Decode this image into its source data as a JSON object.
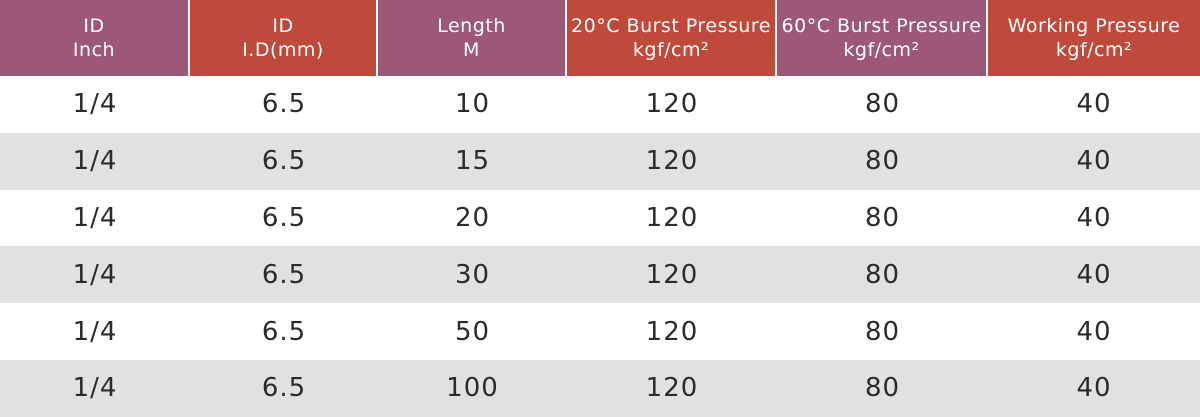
{
  "table": {
    "headers": [
      [
        "ID",
        "Inch"
      ],
      [
        "ID",
        "I.D(mm)"
      ],
      [
        "Length",
        "M"
      ],
      [
        "20°C Burst Pressure",
        "kgf/cm²"
      ],
      [
        "60°C Burst Pressure",
        "kgf/cm²"
      ],
      [
        "Working Pressure",
        "kgf/cm²"
      ]
    ],
    "rows": [
      [
        "1/4",
        6.5,
        10,
        120,
        80,
        40
      ],
      [
        "1/4",
        6.5,
        15,
        120,
        80,
        40
      ],
      [
        "1/4",
        6.5,
        20,
        120,
        80,
        40
      ],
      [
        "1/4",
        6.5,
        30,
        120,
        80,
        40
      ],
      [
        "1/4",
        6.5,
        50,
        120,
        80,
        40
      ],
      [
        "1/4",
        6.5,
        100,
        120,
        80,
        40
      ]
    ]
  }
}
